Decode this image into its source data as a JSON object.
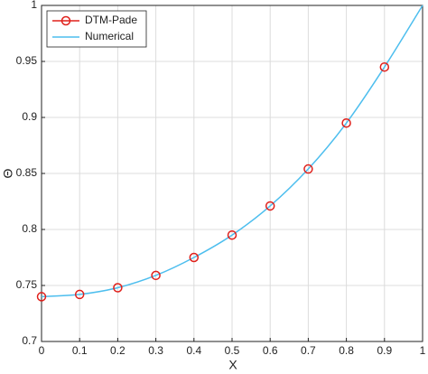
{
  "chart_data": {
    "type": "line",
    "xlabel": "X",
    "ylabel": "Θ",
    "xlim": [
      0,
      1
    ],
    "ylim": [
      0.7,
      1
    ],
    "xticks": [
      0,
      0.1,
      0.2,
      0.3,
      0.4,
      0.5,
      0.6,
      0.7,
      0.8,
      0.9,
      1
    ],
    "yticks": [
      0.7,
      0.75,
      0.8,
      0.85,
      0.9,
      0.95,
      1
    ],
    "grid": true,
    "legend": "upper-left",
    "series": [
      {
        "name": "DTM-Pade",
        "color": "#e0201b",
        "marker": "circle",
        "x": [
          0,
          0.1,
          0.2,
          0.3,
          0.4,
          0.5,
          0.6,
          0.7,
          0.8,
          0.9
        ],
        "values": [
          0.74,
          0.742,
          0.748,
          0.759,
          0.775,
          0.795,
          0.821,
          0.854,
          0.895,
          0.945
        ]
      },
      {
        "name": "Numerical",
        "color": "#4dbeee",
        "marker": "none",
        "x": [
          0,
          0.1,
          0.2,
          0.3,
          0.4,
          0.5,
          0.6,
          0.7,
          0.8,
          0.9,
          1
        ],
        "values": [
          0.74,
          0.742,
          0.748,
          0.759,
          0.775,
          0.795,
          0.821,
          0.854,
          0.895,
          0.945,
          1.0
        ]
      }
    ]
  }
}
